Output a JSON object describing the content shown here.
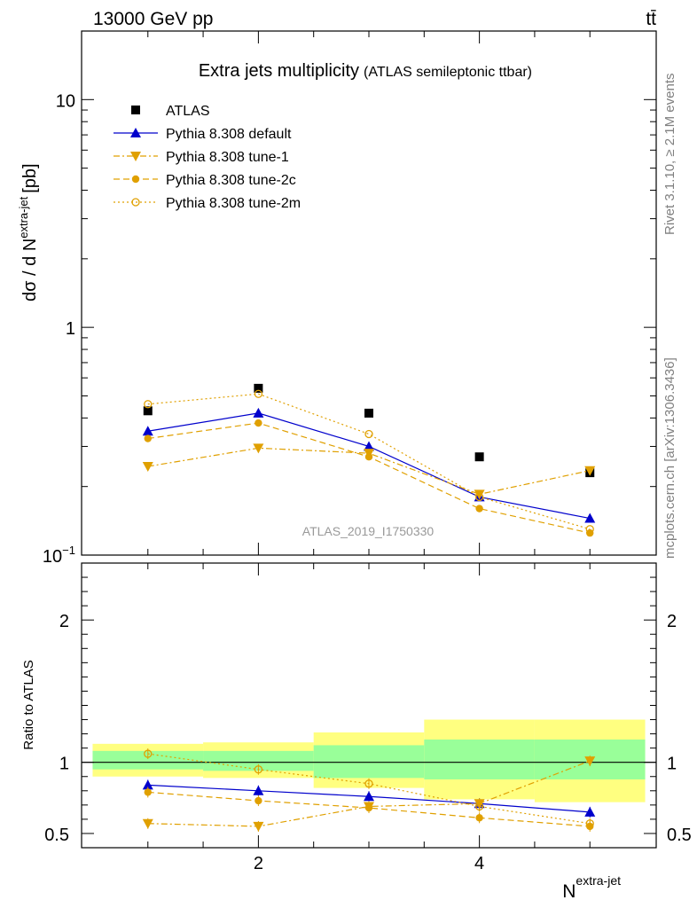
{
  "header": {
    "energy_label": "13000 GeV pp",
    "process_label": "tt̄"
  },
  "side_labels": {
    "rivet": "Rivet 3.1.10, ≥ 2.1M events",
    "mcplots": "mcplots.cern.ch [arXiv:1306.3436]"
  },
  "chart_data": [
    {
      "type": "scatter",
      "title": "Extra jets multiplicity",
      "subtitle": "(ATLAS semileptonic ttbar)",
      "watermark": "ATLAS_2019_I1750330",
      "ylabel_main": "dσ / d N",
      "ylabel_sup": "extra-jet",
      "ylabel_unit": "[pb]",
      "yscale": "log",
      "ylim": [
        0.1,
        20
      ],
      "xlim": [
        0.4,
        5.6
      ],
      "y_ticks": [
        {
          "value": 0.1,
          "label": "10",
          "sup": "−1"
        },
        {
          "value": 1,
          "label": "1",
          "sup": ""
        },
        {
          "value": 10,
          "label": "10",
          "sup": ""
        }
      ],
      "legend_position": "top-left",
      "series": [
        {
          "name": "ATLAS",
          "color": "#000000",
          "marker": "square",
          "line": "none",
          "x": [
            1,
            2,
            3,
            4,
            5
          ],
          "y": [
            0.43,
            0.54,
            0.42,
            0.27,
            0.23
          ]
        },
        {
          "name": "Pythia 8.308 default",
          "color": "#0000cc",
          "marker": "triangle-up",
          "line": "solid",
          "x": [
            1,
            2,
            3,
            4,
            5
          ],
          "y": [
            0.35,
            0.42,
            0.3,
            0.18,
            0.145
          ]
        },
        {
          "name": "Pythia 8.308 tune-1",
          "color": "#e0a000",
          "marker": "triangle-down",
          "line": "dashdot",
          "x": [
            1,
            2,
            3,
            4,
            5
          ],
          "y": [
            0.245,
            0.295,
            0.28,
            0.185,
            0.235
          ]
        },
        {
          "name": "Pythia 8.308 tune-2c",
          "color": "#e0a000",
          "marker": "circle",
          "line": "dashed",
          "x": [
            1,
            2,
            3,
            4,
            5
          ],
          "y": [
            0.325,
            0.38,
            0.27,
            0.16,
            0.125
          ]
        },
        {
          "name": "Pythia 8.308 tune-2m",
          "color": "#e0a000",
          "marker": "circle-open",
          "line": "dotted",
          "x": [
            1,
            2,
            3,
            4,
            5
          ],
          "y": [
            0.46,
            0.51,
            0.34,
            0.18,
            0.13
          ]
        }
      ]
    },
    {
      "type": "scatter",
      "title": "",
      "ylabel": "Ratio to ATLAS",
      "xlabel": "N",
      "xlabel_sup": "extra-jet",
      "ylim": [
        0.4,
        2.4
      ],
      "xlim": [
        0.4,
        5.6
      ],
      "x_ticks": [
        {
          "value": 2,
          "label": "2"
        },
        {
          "value": 4,
          "label": "4"
        }
      ],
      "y_ticks": [
        {
          "value": 0.5,
          "label": "0.5"
        },
        {
          "value": 1,
          "label": "1"
        },
        {
          "value": 2,
          "label": "2"
        }
      ],
      "bands": {
        "x_edges": [
          0.5,
          1.5,
          2.5,
          3.5,
          4.5,
          5.5
        ],
        "outer_color": "#ffff80",
        "inner_color": "#99ff99",
        "outer_low": [
          0.9,
          0.89,
          0.82,
          0.74,
          0.72
        ],
        "outer_high": [
          1.13,
          1.14,
          1.21,
          1.3,
          1.3
        ],
        "inner_low": [
          0.95,
          0.94,
          0.89,
          0.88,
          0.88
        ],
        "inner_high": [
          1.08,
          1.08,
          1.12,
          1.16,
          1.16
        ]
      },
      "series": [
        {
          "name": "Pythia 8.308 default",
          "color": "#0000cc",
          "marker": "triangle-up",
          "line": "solid",
          "x": [
            1,
            2,
            3,
            4,
            5
          ],
          "y": [
            0.84,
            0.8,
            0.76,
            0.71,
            0.65
          ]
        },
        {
          "name": "Pythia 8.308 tune-1",
          "color": "#e0a000",
          "marker": "triangle-down",
          "line": "dashdot",
          "x": [
            1,
            2,
            3,
            4,
            5
          ],
          "y": [
            0.57,
            0.55,
            0.69,
            0.71,
            1.01
          ]
        },
        {
          "name": "Pythia 8.308 tune-2c",
          "color": "#e0a000",
          "marker": "circle",
          "line": "dashed",
          "x": [
            1,
            2,
            3,
            4,
            5
          ],
          "y": [
            0.79,
            0.73,
            0.68,
            0.61,
            0.55
          ]
        },
        {
          "name": "Pythia 8.308 tune-2m",
          "color": "#e0a000",
          "marker": "circle-open",
          "line": "dotted",
          "x": [
            1,
            2,
            3,
            4,
            5
          ],
          "y": [
            1.06,
            0.95,
            0.85,
            0.69,
            0.57
          ]
        }
      ]
    }
  ]
}
